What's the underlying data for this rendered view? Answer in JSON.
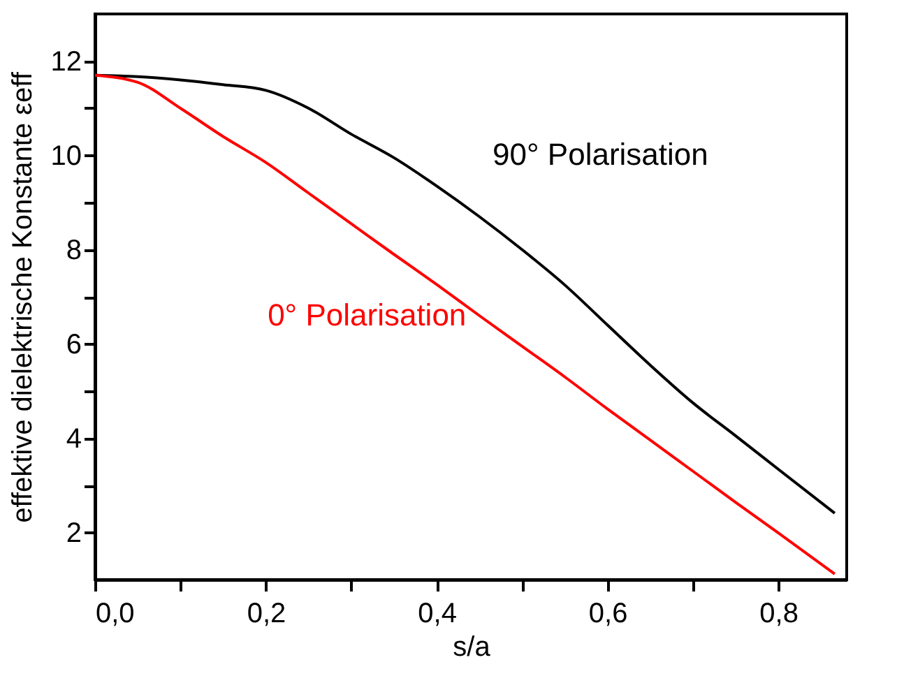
{
  "chart_data": {
    "type": "line",
    "xlabel": "s/a",
    "ylabel": "effektive dielektrische Konstante εeff",
    "x": [
      0,
      0.05,
      0.1,
      0.15,
      0.2,
      0.25,
      0.3,
      0.35,
      0.4,
      0.45,
      0.5,
      0.55,
      0.6,
      0.65,
      0.7,
      0.75,
      0.8,
      0.866
    ],
    "series": [
      {
        "name": "90° Polarisation",
        "color": "#000000",
        "values": [
          11.7,
          11.67,
          11.6,
          11.5,
          11.38,
          11.0,
          10.45,
          9.95,
          9.35,
          8.7,
          8.0,
          7.25,
          6.4,
          5.55,
          4.75,
          4.05,
          3.34,
          2.41
        ]
      },
      {
        "name": "0° Polarisation",
        "color": "#ff0000",
        "values": [
          11.7,
          11.55,
          11.0,
          10.4,
          9.85,
          9.2,
          8.55,
          7.9,
          7.26,
          6.6,
          5.95,
          5.3,
          4.62,
          3.96,
          3.3,
          2.64,
          1.99,
          1.12
        ]
      }
    ],
    "xlim": [
      0,
      0.88
    ],
    "ylim": [
      1,
      13
    ],
    "xticks": [
      {
        "value": 0,
        "label": "0,0"
      },
      {
        "value": 0.1,
        "label": null
      },
      {
        "value": 0.2,
        "label": "0,2"
      },
      {
        "value": 0.3,
        "label": null
      },
      {
        "value": 0.4,
        "label": "0,4"
      },
      {
        "value": 0.5,
        "label": null
      },
      {
        "value": 0.6,
        "label": "0,6"
      },
      {
        "value": 0.7,
        "label": null
      },
      {
        "value": 0.8,
        "label": "0,8"
      }
    ],
    "yticks": [
      2,
      {
        "value": 3,
        "label": null
      },
      4,
      {
        "value": 5,
        "label": null
      },
      6,
      {
        "value": 7,
        "label": null
      },
      8,
      {
        "value": 9,
        "label": null
      },
      10,
      {
        "value": 11,
        "label": null
      },
      12
    ],
    "grid": false,
    "legend": false,
    "marker": "none",
    "line_style": "solid"
  }
}
